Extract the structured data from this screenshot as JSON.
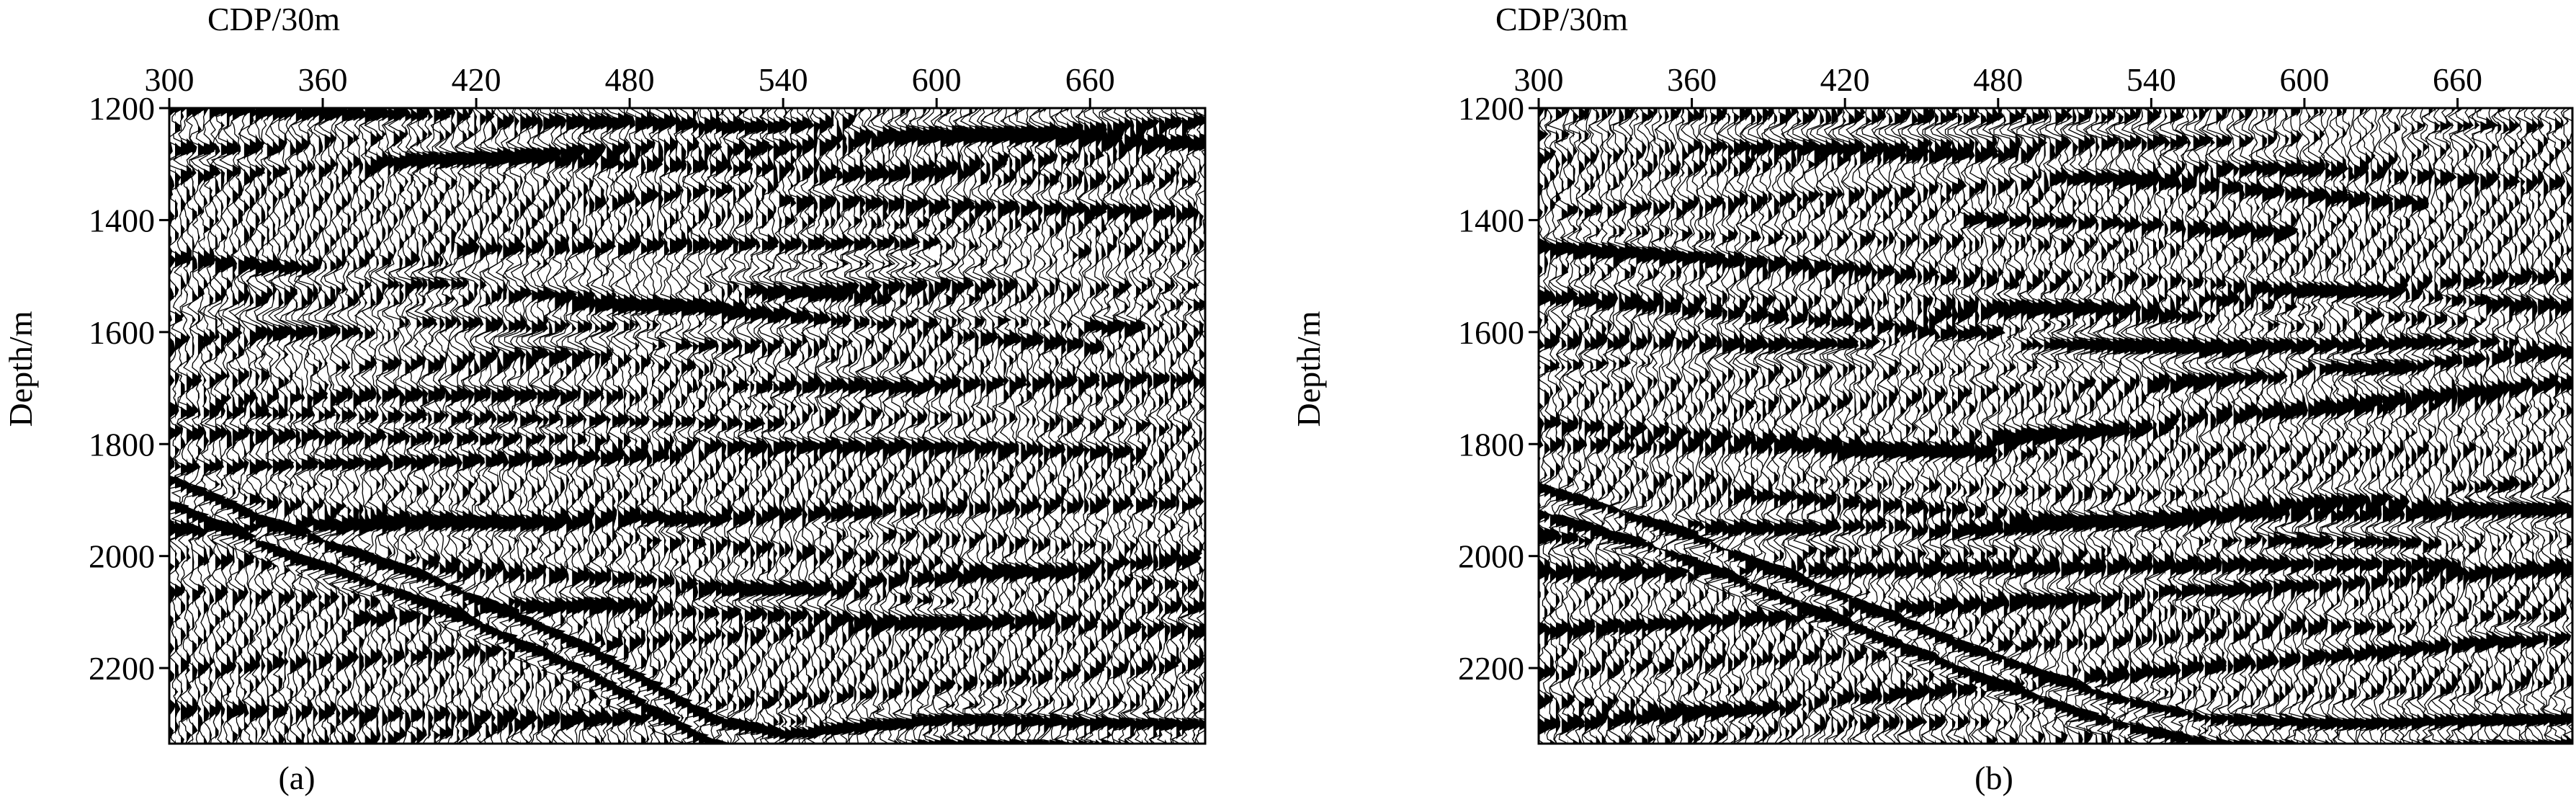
{
  "chart_data": [
    {
      "type": "heatmap",
      "panel_label": "(a)",
      "xlabel": "CDP/30m",
      "ylabel": "Depth/m",
      "xlim": [
        300,
        705
      ],
      "ylim": [
        1200,
        2335
      ],
      "x_ticks": [
        300,
        360,
        420,
        480,
        540,
        600,
        660
      ],
      "y_ticks": [
        1200,
        1400,
        1600,
        1800,
        2000,
        2200
      ],
      "y_inverted": true,
      "colormap": "wiggle variable-area black/white",
      "dipping_reflector": [
        [
          300,
          1865
        ],
        [
          340,
          1945
        ],
        [
          400,
          2040
        ],
        [
          460,
          2160
        ],
        [
          510,
          2290
        ],
        [
          540,
          2320
        ],
        [
          600,
          2290
        ],
        [
          705,
          2300
        ]
      ],
      "seed": 11
    },
    {
      "type": "heatmap",
      "panel_label": "(b)",
      "xlabel": "CDP/30m",
      "ylabel": "Depth/m",
      "xlim": [
        300,
        705
      ],
      "ylim": [
        1200,
        2335
      ],
      "x_ticks": [
        300,
        360,
        420,
        480,
        540,
        600,
        660
      ],
      "y_ticks": [
        1200,
        1400,
        1600,
        1800,
        2000,
        2200
      ],
      "y_inverted": true,
      "colormap": "wiggle variable-area black/white",
      "dipping_reflector": [
        [
          300,
          1880
        ],
        [
          350,
          1950
        ],
        [
          410,
          2060
        ],
        [
          470,
          2170
        ],
        [
          520,
          2250
        ],
        [
          560,
          2290
        ],
        [
          620,
          2300
        ],
        [
          705,
          2290
        ]
      ],
      "seed": 29
    }
  ],
  "colors": {
    "ink": "#000000",
    "paper": "#ffffff"
  }
}
